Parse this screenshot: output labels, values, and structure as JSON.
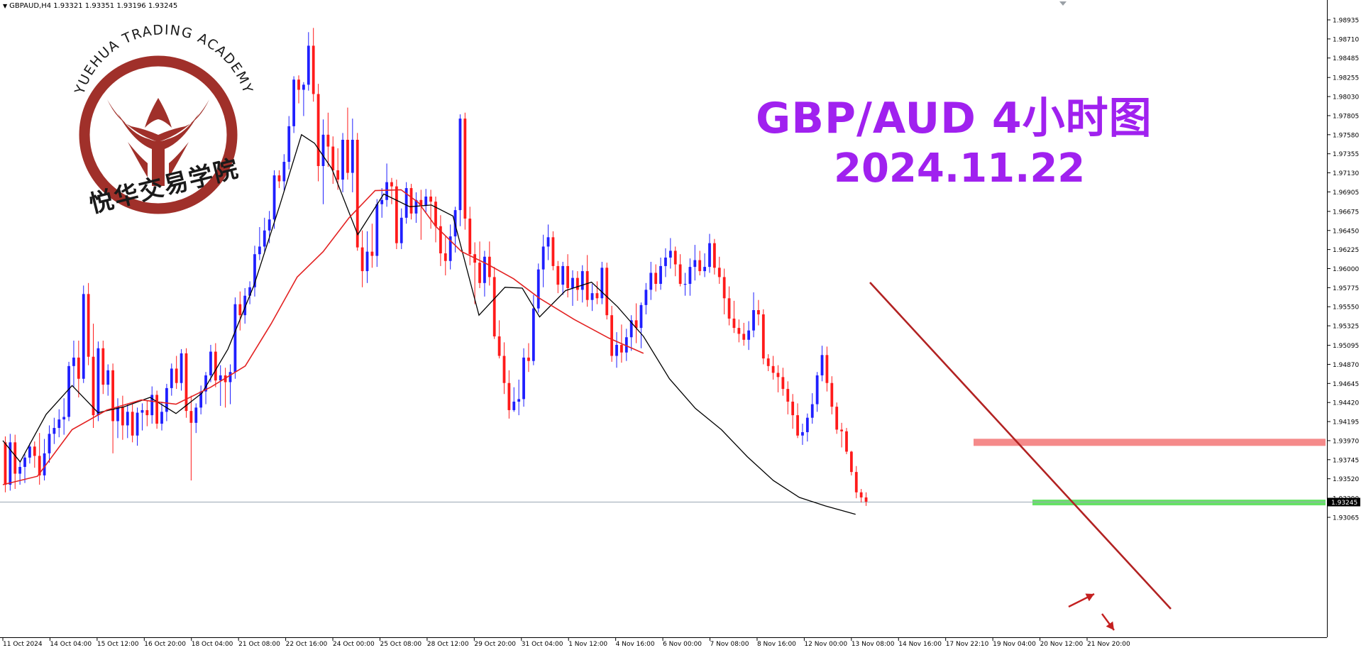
{
  "header": {
    "symbol_info": "GBPAUD,H4  1.93321 1.93351 1.93196 1.93245",
    "menu_arrow_icon": "triangle-down-icon"
  },
  "overlay": {
    "title": "GBP/AUD 4小时图",
    "date": "2024.11.22"
  },
  "logo": {
    "arc_text": "YUEHUA TRADING ACADEMY",
    "cn_text": "悦华交易学院",
    "color": "#a0302a"
  },
  "colors": {
    "bull": "#1f1fff",
    "bear": "#ff1a1a",
    "ma_fast": "#000000",
    "ma_slow": "#e32222",
    "trendline": "#b22222",
    "resistance_zone": "#f58a8a",
    "support_zone": "#66e066",
    "arrow": "#c42020",
    "title": "#a021ef"
  },
  "chart_data": {
    "type": "candlestick",
    "symbol": "GBPAUD",
    "timeframe": "H4",
    "last_price": "1.93245",
    "ylim": [
      1.9306,
      1.9903
    ],
    "y_ticks": [
      "1.98935",
      "1.98710",
      "1.98485",
      "1.98255",
      "1.98030",
      "1.97805",
      "1.97580",
      "1.97355",
      "1.97130",
      "1.96905",
      "1.96675",
      "1.96450",
      "1.96225",
      "1.96000",
      "1.95775",
      "1.95550",
      "1.95325",
      "1.95095",
      "1.94870",
      "1.94645",
      "1.94420",
      "1.94195",
      "1.93970",
      "1.93745",
      "1.93520",
      "1.93290",
      "1.93065"
    ],
    "y_tick_values": [
      1.98935,
      1.9871,
      1.98485,
      1.98255,
      1.9803,
      1.97805,
      1.9758,
      1.97355,
      1.9713,
      1.96905,
      1.96675,
      1.9645,
      1.96225,
      1.96,
      1.95775,
      1.9555,
      1.95325,
      1.95095,
      1.9487,
      1.94645,
      1.9442,
      1.94195,
      1.9397,
      1.93745,
      1.9352,
      1.9329,
      1.93065
    ],
    "x_ticks": [
      "11 Oct 2024",
      "14 Oct 04:00",
      "15 Oct 12:00",
      "16 Oct 20:00",
      "18 Oct 04:00",
      "21 Oct 08:00",
      "22 Oct 16:00",
      "24 Oct 00:00",
      "25 Oct 08:00",
      "28 Oct 12:00",
      "29 Oct 20:00",
      "31 Oct 04:00",
      "1 Nov 12:00",
      "4 Nov 16:00",
      "6 Nov 00:00",
      "7 Nov 08:00",
      "8 Nov 16:00",
      "12 Nov 00:00",
      "13 Nov 08:00",
      "14 Nov 16:00",
      "17 Nov 22:10",
      "19 Nov 04:00",
      "20 Nov 12:00",
      "21 Nov 20:00"
    ],
    "ohlc": [
      [
        1.9395,
        1.9402,
        1.9336,
        1.9345
      ],
      [
        1.9345,
        1.9405,
        1.9338,
        1.9395
      ],
      [
        1.9395,
        1.9404,
        1.934,
        1.9358
      ],
      [
        1.9358,
        1.9373,
        1.9345,
        1.9366
      ],
      [
        1.9366,
        1.9381,
        1.9347,
        1.9377
      ],
      [
        1.9377,
        1.9394,
        1.937,
        1.939
      ],
      [
        1.939,
        1.9396,
        1.9365,
        1.9379
      ],
      [
        1.9379,
        1.9406,
        1.9345,
        1.9356
      ],
      [
        1.9356,
        1.9399,
        1.935,
        1.9382
      ],
      [
        1.9382,
        1.9415,
        1.9371,
        1.9405
      ],
      [
        1.9405,
        1.9424,
        1.9393,
        1.9412
      ],
      [
        1.9412,
        1.9434,
        1.9401,
        1.9422
      ],
      [
        1.9422,
        1.9447,
        1.9404,
        1.9425
      ],
      [
        1.9425,
        1.949,
        1.942,
        1.9485
      ],
      [
        1.9485,
        1.9515,
        1.946,
        1.9495
      ],
      [
        1.9495,
        1.9515,
        1.9448,
        1.947
      ],
      [
        1.947,
        1.958,
        1.9465,
        1.957
      ],
      [
        1.957,
        1.9583,
        1.9486,
        1.9496
      ],
      [
        1.9496,
        1.9535,
        1.9412,
        1.9427
      ],
      [
        1.9427,
        1.9514,
        1.942,
        1.9506
      ],
      [
        1.9506,
        1.9515,
        1.9452,
        1.9463
      ],
      [
        1.9463,
        1.9487,
        1.945,
        1.948
      ],
      [
        1.948,
        1.9488,
        1.9382,
        1.942
      ],
      [
        1.942,
        1.9447,
        1.94,
        1.9437
      ],
      [
        1.9437,
        1.945,
        1.9398,
        1.9415
      ],
      [
        1.9415,
        1.944,
        1.94,
        1.9431
      ],
      [
        1.9431,
        1.944,
        1.9395,
        1.9403
      ],
      [
        1.9403,
        1.9436,
        1.9391,
        1.943
      ],
      [
        1.943,
        1.9441,
        1.9409,
        1.9433
      ],
      [
        1.9433,
        1.9444,
        1.9414,
        1.9427
      ],
      [
        1.9427,
        1.9461,
        1.9417,
        1.9451
      ],
      [
        1.9451,
        1.9456,
        1.9411,
        1.9417
      ],
      [
        1.9417,
        1.9443,
        1.9409,
        1.9431
      ],
      [
        1.9431,
        1.9464,
        1.942,
        1.9459
      ],
      [
        1.9459,
        1.9488,
        1.945,
        1.9482
      ],
      [
        1.9482,
        1.9497,
        1.9458,
        1.9465
      ],
      [
        1.9465,
        1.9505,
        1.9456,
        1.95
      ],
      [
        1.95,
        1.9506,
        1.9424,
        1.9432
      ],
      [
        1.9432,
        1.945,
        1.935,
        1.9418
      ],
      [
        1.9418,
        1.9441,
        1.9406,
        1.9436
      ],
      [
        1.9436,
        1.9462,
        1.9428,
        1.9455
      ],
      [
        1.9455,
        1.9478,
        1.944,
        1.9474
      ],
      [
        1.9474,
        1.951,
        1.9466,
        1.9502
      ],
      [
        1.9502,
        1.9512,
        1.946,
        1.9468
      ],
      [
        1.9468,
        1.9486,
        1.9438,
        1.9474
      ],
      [
        1.9474,
        1.9483,
        1.9436,
        1.9466
      ],
      [
        1.9466,
        1.9487,
        1.944,
        1.9478
      ],
      [
        1.9478,
        1.9566,
        1.947,
        1.9558
      ],
      [
        1.9558,
        1.9573,
        1.9527,
        1.9545
      ],
      [
        1.9545,
        1.9577,
        1.9535,
        1.9568
      ],
      [
        1.9568,
        1.9585,
        1.9558,
        1.9578
      ],
      [
        1.9578,
        1.9627,
        1.9567,
        1.9617
      ],
      [
        1.9617,
        1.9649,
        1.961,
        1.9626
      ],
      [
        1.9626,
        1.966,
        1.962,
        1.9645
      ],
      [
        1.9645,
        1.9668,
        1.963,
        1.9658
      ],
      [
        1.9658,
        1.9716,
        1.9647,
        1.971
      ],
      [
        1.971,
        1.9716,
        1.9695,
        1.9703
      ],
      [
        1.9703,
        1.9735,
        1.9692,
        1.9726
      ],
      [
        1.9726,
        1.978,
        1.9717,
        1.9768
      ],
      [
        1.9768,
        1.9827,
        1.976,
        1.9823
      ],
      [
        1.9823,
        1.9828,
        1.9795,
        1.9811
      ],
      [
        1.9811,
        1.982,
        1.978,
        1.9817
      ],
      [
        1.9817,
        1.9879,
        1.981,
        1.9863
      ],
      [
        1.9863,
        1.9884,
        1.9797,
        1.9806
      ],
      [
        1.9806,
        1.9818,
        1.9703,
        1.9721
      ],
      [
        1.9721,
        1.9776,
        1.9676,
        1.9758
      ],
      [
        1.9758,
        1.9784,
        1.972,
        1.9744
      ],
      [
        1.9744,
        1.9756,
        1.97,
        1.9716
      ],
      [
        1.9716,
        1.9742,
        1.9693,
        1.9705
      ],
      [
        1.9705,
        1.976,
        1.969,
        1.9752
      ],
      [
        1.9752,
        1.979,
        1.9705,
        1.9713
      ],
      [
        1.9713,
        1.9777,
        1.969,
        1.9752
      ],
      [
        1.9752,
        1.976,
        1.9621,
        1.9625
      ],
      [
        1.9625,
        1.9645,
        1.9578,
        1.9597
      ],
      [
        1.9597,
        1.9644,
        1.9583,
        1.962
      ],
      [
        1.962,
        1.9653,
        1.9601,
        1.9615
      ],
      [
        1.9615,
        1.9682,
        1.9602,
        1.9676
      ],
      [
        1.9676,
        1.9695,
        1.966,
        1.9681
      ],
      [
        1.9681,
        1.9724,
        1.9673,
        1.9702
      ],
      [
        1.9702,
        1.9707,
        1.9676,
        1.9697
      ],
      [
        1.9697,
        1.9705,
        1.9623,
        1.963
      ],
      [
        1.963,
        1.9671,
        1.9623,
        1.966
      ],
      [
        1.966,
        1.9702,
        1.9653,
        1.9695
      ],
      [
        1.9695,
        1.97,
        1.9658,
        1.9665
      ],
      [
        1.9665,
        1.969,
        1.9654,
        1.9681
      ],
      [
        1.9681,
        1.9693,
        1.9634,
        1.9674
      ],
      [
        1.9674,
        1.9694,
        1.9665,
        1.9685
      ],
      [
        1.9685,
        1.9693,
        1.9647,
        1.9679
      ],
      [
        1.9679,
        1.9685,
        1.9631,
        1.965
      ],
      [
        1.965,
        1.9663,
        1.9603,
        1.9618
      ],
      [
        1.9618,
        1.9638,
        1.9592,
        1.9609
      ],
      [
        1.9609,
        1.9652,
        1.9599,
        1.9638
      ],
      [
        1.9638,
        1.9673,
        1.9619,
        1.9669
      ],
      [
        1.9669,
        1.9782,
        1.965,
        1.9777
      ],
      [
        1.9777,
        1.9784,
        1.9646,
        1.9659
      ],
      [
        1.9659,
        1.9673,
        1.9604,
        1.9617
      ],
      [
        1.9617,
        1.9631,
        1.9558,
        1.9607
      ],
      [
        1.9607,
        1.9632,
        1.9577,
        1.9583
      ],
      [
        1.9583,
        1.9621,
        1.9567,
        1.9614
      ],
      [
        1.9614,
        1.9632,
        1.958,
        1.959
      ],
      [
        1.959,
        1.9602,
        1.9517,
        1.952
      ],
      [
        1.952,
        1.9539,
        1.9494,
        1.9497
      ],
      [
        1.9497,
        1.9513,
        1.9452,
        1.9465
      ],
      [
        1.9465,
        1.948,
        1.9423,
        1.9433
      ],
      [
        1.9433,
        1.946,
        1.9431,
        1.9443
      ],
      [
        1.9443,
        1.9469,
        1.9427,
        1.9446
      ],
      [
        1.9446,
        1.9506,
        1.9437,
        1.9495
      ],
      [
        1.9495,
        1.9512,
        1.9478,
        1.9491
      ],
      [
        1.9491,
        1.9569,
        1.9486,
        1.9553
      ],
      [
        1.9553,
        1.9606,
        1.9548,
        1.9599
      ],
      [
        1.9599,
        1.964,
        1.9578,
        1.9626
      ],
      [
        1.9626,
        1.9652,
        1.961,
        1.9637
      ],
      [
        1.9637,
        1.9644,
        1.9598,
        1.9603
      ],
      [
        1.9603,
        1.9609,
        1.9571,
        1.9581
      ],
      [
        1.9581,
        1.9608,
        1.9569,
        1.9603
      ],
      [
        1.9603,
        1.9617,
        1.9566,
        1.9577
      ],
      [
        1.9577,
        1.9598,
        1.9556,
        1.9589
      ],
      [
        1.9589,
        1.9597,
        1.9562,
        1.9575
      ],
      [
        1.9575,
        1.9604,
        1.956,
        1.9597
      ],
      [
        1.9597,
        1.9616,
        1.9555,
        1.9563
      ],
      [
        1.9563,
        1.9582,
        1.955,
        1.9571
      ],
      [
        1.9571,
        1.9585,
        1.9558,
        1.9565
      ],
      [
        1.9565,
        1.9608,
        1.9558,
        1.9601
      ],
      [
        1.9601,
        1.9607,
        1.954,
        1.9545
      ],
      [
        1.9545,
        1.9556,
        1.949,
        1.9497
      ],
      [
        1.9497,
        1.9525,
        1.9483,
        1.951
      ],
      [
        1.951,
        1.9534,
        1.9489,
        1.9501
      ],
      [
        1.9501,
        1.9529,
        1.9491,
        1.9519
      ],
      [
        1.9519,
        1.9545,
        1.9503,
        1.9539
      ],
      [
        1.9539,
        1.9559,
        1.9512,
        1.953
      ],
      [
        1.953,
        1.956,
        1.9506,
        1.9557
      ],
      [
        1.9557,
        1.9583,
        1.9546,
        1.9575
      ],
      [
        1.9575,
        1.9608,
        1.9563,
        1.9595
      ],
      [
        1.9595,
        1.9605,
        1.9573,
        1.9582
      ],
      [
        1.9582,
        1.9613,
        1.9575,
        1.9603
      ],
      [
        1.9603,
        1.9624,
        1.959,
        1.9613
      ],
      [
        1.9613,
        1.9636,
        1.96,
        1.9621
      ],
      [
        1.9621,
        1.9626,
        1.9591,
        1.9605
      ],
      [
        1.9605,
        1.9617,
        1.9579,
        1.9582
      ],
      [
        1.9582,
        1.9595,
        1.9568,
        1.9582
      ],
      [
        1.9582,
        1.9612,
        1.9568,
        1.9602
      ],
      [
        1.9602,
        1.9628,
        1.9586,
        1.961
      ],
      [
        1.961,
        1.9621,
        1.9592,
        1.9597
      ],
      [
        1.9597,
        1.9618,
        1.959,
        1.9602
      ],
      [
        1.9602,
        1.9641,
        1.9595,
        1.963
      ],
      [
        1.963,
        1.9635,
        1.9593,
        1.9601
      ],
      [
        1.9601,
        1.9614,
        1.9582,
        1.959
      ],
      [
        1.959,
        1.96,
        1.9546,
        1.9565
      ],
      [
        1.9565,
        1.9579,
        1.9533,
        1.9541
      ],
      [
        1.9541,
        1.9562,
        1.9524,
        1.953
      ],
      [
        1.953,
        1.954,
        1.9513,
        1.9523
      ],
      [
        1.9523,
        1.9536,
        1.9509,
        1.9516
      ],
      [
        1.9516,
        1.9538,
        1.9504,
        1.9527
      ],
      [
        1.9527,
        1.9572,
        1.9519,
        1.9551
      ],
      [
        1.9551,
        1.9563,
        1.9533,
        1.9546
      ],
      [
        1.9546,
        1.9552,
        1.9487,
        1.9494
      ],
      [
        1.9494,
        1.9499,
        1.9479,
        1.9485
      ],
      [
        1.9485,
        1.9497,
        1.9469,
        1.9477
      ],
      [
        1.9477,
        1.9486,
        1.9454,
        1.9472
      ],
      [
        1.9472,
        1.9483,
        1.945,
        1.9458
      ],
      [
        1.9458,
        1.9467,
        1.9428,
        1.9443
      ],
      [
        1.9443,
        1.9452,
        1.9411,
        1.9427
      ],
      [
        1.9427,
        1.9441,
        1.94,
        1.9403
      ],
      [
        1.9403,
        1.9417,
        1.9392,
        1.9407
      ],
      [
        1.9407,
        1.9429,
        1.9396,
        1.9424
      ],
      [
        1.9424,
        1.9453,
        1.9417,
        1.944
      ],
      [
        1.944,
        1.9478,
        1.9431,
        1.9474
      ],
      [
        1.9474,
        1.9509,
        1.9467,
        1.9498
      ],
      [
        1.9498,
        1.9508,
        1.9455,
        1.9465
      ],
      [
        1.9465,
        1.9473,
        1.9428,
        1.9437
      ],
      [
        1.9437,
        1.9442,
        1.9405,
        1.941
      ],
      [
        1.941,
        1.9418,
        1.9389,
        1.9408
      ],
      [
        1.9408,
        1.9412,
        1.9381,
        1.9384
      ],
      [
        1.9384,
        1.9385,
        1.9356,
        1.936
      ],
      [
        1.936,
        1.9367,
        1.9329,
        1.9336
      ],
      [
        1.9336,
        1.934,
        1.9324,
        1.933
      ],
      [
        1.933,
        1.9336,
        1.932,
        1.9325
      ]
    ],
    "series": [
      {
        "type": "line",
        "x_frac": [
          0.0,
          0.02,
          0.05,
          0.08,
          0.11,
          0.14,
          0.17,
          0.2,
          0.23,
          0.26,
          0.29,
          0.32,
          0.345,
          0.36,
          0.38,
          0.41,
          0.44,
          0.47,
          0.495,
          0.52,
          0.55,
          0.58,
          0.6,
          0.62,
          0.65,
          0.68,
          0.71,
          0.74,
          0.77,
          0.8,
          0.83,
          0.86,
          0.89,
          0.92,
          0.95,
          0.985
        ],
        "values": [
          1.9397,
          1.9372,
          1.9428,
          1.9462,
          1.943,
          1.9437,
          1.9448,
          1.9429,
          1.9453,
          1.9505,
          1.958,
          1.9675,
          1.9758,
          1.9748,
          1.9718,
          1.964,
          1.9688,
          1.9673,
          1.9675,
          1.9662,
          1.9545,
          1.9578,
          1.9577,
          1.9543,
          1.9574,
          1.9584,
          1.9555,
          1.952,
          1.947,
          1.9435,
          1.941,
          1.9378,
          1.935,
          1.933,
          1.932,
          1.931
        ]
      },
      {
        "type": "line",
        "x_frac": [
          0.0,
          0.04,
          0.08,
          0.12,
          0.16,
          0.2,
          0.24,
          0.28,
          0.31,
          0.34,
          0.37,
          0.4,
          0.43,
          0.46,
          0.48,
          0.5,
          0.53,
          0.56,
          0.59,
          0.62,
          0.66,
          0.7,
          0.74
        ],
        "values": [
          1.9345,
          1.9355,
          1.941,
          1.9433,
          1.9445,
          1.944,
          1.946,
          1.9485,
          1.9535,
          1.959,
          1.962,
          1.966,
          1.9692,
          1.9693,
          1.9678,
          1.965,
          1.962,
          1.9605,
          1.9588,
          1.9565,
          1.954,
          1.9518,
          1.95
        ]
      }
    ],
    "annotations": {
      "trendline": {
        "from": [
          "14 Nov 16:00",
          1.9648
        ],
        "to": [
          "21 Nov 20:00",
          1.933
        ]
      },
      "resistance_zone": 1.9395,
      "support_zone": 1.9324,
      "current_price_line": 1.93245
    },
    "grid": false,
    "legend": "none"
  }
}
